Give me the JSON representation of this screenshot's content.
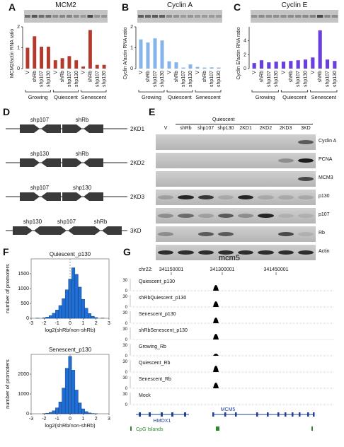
{
  "panels": {
    "A": "A",
    "B": "B",
    "C": "C",
    "D": "D",
    "E": "E",
    "F": "F",
    "G": "G"
  },
  "colors": {
    "mcm2": "#b43a2e",
    "cyclinA": "#86b4ea",
    "cyclinE": "#6a3fe0",
    "hist": "#1f6fd6",
    "peak": "#000000",
    "gene": "#1f3f9a",
    "cpg": "#2a8a2a"
  },
  "chart_data": [
    {
      "type": "bar",
      "title": "MCM2",
      "ylabel": "MCM2/actin RNA ratio",
      "ylim": [
        0,
        2
      ],
      "categories": [
        "V",
        "shRb",
        "shp107",
        "shp130",
        "V",
        "shRb",
        "shp107",
        "shp130",
        "V",
        "shRb",
        "shp107",
        "shp130"
      ],
      "values": [
        1.0,
        1.55,
        1.05,
        1.05,
        0.4,
        0.5,
        0.6,
        0.4,
        0.1,
        1.85,
        0.18,
        0.18
      ],
      "groups": [
        "Growing",
        "Quiescent",
        "Senescent"
      ],
      "yticks": [
        "0",
        "1",
        "2"
      ]
    },
    {
      "type": "bar",
      "title": "Cyclin A",
      "ylabel": "Cyclin A/actin RNA ratio",
      "ylim": [
        0,
        2
      ],
      "categories": [
        "V",
        "shRb",
        "shp107",
        "shp130",
        "V",
        "shRb",
        "shp107",
        "shp130",
        "V",
        "shRb",
        "shp107",
        "shp130"
      ],
      "values": [
        1.4,
        1.25,
        1.45,
        1.35,
        0.35,
        0.3,
        0.05,
        0.2,
        0.08,
        0.05,
        0.06,
        0.05
      ],
      "groups": [
        "Growing",
        "Quiescent",
        "Senescent"
      ],
      "yticks": [
        "0",
        "1",
        "2"
      ]
    },
    {
      "type": "bar",
      "title": "Cyclin E",
      "ylabel": "Cyclin E/actin RNA ratio",
      "ylim": [
        0,
        6
      ],
      "categories": [
        "V",
        "shRb",
        "shp107",
        "shp130",
        "V",
        "shRb",
        "shp107",
        "shp130",
        "V",
        "shRb",
        "shp107",
        "shp130"
      ],
      "values": [
        0.8,
        1.2,
        0.9,
        1.0,
        1.0,
        1.1,
        1.2,
        1.3,
        1.6,
        5.5,
        1.3,
        1.1
      ],
      "groups": [
        "Growing",
        "Quiescent",
        "Senescent"
      ],
      "yticks": [
        "0",
        "2",
        "4"
      ]
    },
    {
      "type": "bar",
      "title": "Quiescent_p130",
      "xlabel": "log2(shRb/non-shRb)",
      "ylabel": "number of promoters",
      "xlim": [
        -3,
        3
      ],
      "ylim": [
        0,
        2000
      ],
      "xticks": [
        "-3",
        "-2",
        "-1",
        "0",
        "1",
        "2",
        "3"
      ],
      "yticks": [
        "0",
        "500",
        "1000",
        "1500"
      ],
      "bins": [
        -2.5,
        -2.0,
        -1.75,
        -1.5,
        -1.25,
        -1.0,
        -0.75,
        -0.5,
        -0.25,
        0.0,
        0.25,
        0.5,
        0.75,
        1.0,
        1.25,
        1.5,
        1.75,
        2.0,
        2.5
      ],
      "values": [
        5,
        15,
        40,
        90,
        170,
        280,
        430,
        660,
        960,
        1320,
        1700,
        1480,
        1050,
        640,
        340,
        160,
        70,
        25,
        8
      ]
    },
    {
      "type": "bar",
      "title": "Senescent_p130",
      "xlabel": "log2(shRb/non-shRb)",
      "ylabel": "number of promoters",
      "xlim": [
        -3,
        3
      ],
      "ylim": [
        0,
        3000
      ],
      "xticks": [
        "-3",
        "-2",
        "-1",
        "0",
        "1",
        "2",
        "3"
      ],
      "yticks": [
        "0",
        "1000",
        "2000"
      ],
      "bins": [
        -2.0,
        -1.75,
        -1.5,
        -1.25,
        -1.0,
        -0.75,
        -0.5,
        -0.25,
        0.0,
        0.25,
        0.5,
        0.75,
        1.0,
        1.25,
        1.5,
        1.75,
        2.0
      ],
      "values": [
        10,
        30,
        70,
        150,
        300,
        600,
        1300,
        2300,
        2900,
        2200,
        1200,
        550,
        250,
        110,
        45,
        15,
        5
      ]
    }
  ],
  "panelD": {
    "constructs": [
      {
        "labels": [
          "shp107",
          "shRb"
        ],
        "name": "2KD1"
      },
      {
        "labels": [
          "shp130",
          "shRb"
        ],
        "name": "2KD2"
      },
      {
        "labels": [
          "shp107",
          "shp130"
        ],
        "name": "2KD3"
      },
      {
        "labels": [
          "shp130",
          "shp107",
          "shRb"
        ],
        "name": "3KD"
      }
    ]
  },
  "panelE": {
    "group_label": "Quiescent",
    "lanes": [
      "V",
      "shRb",
      "shp107",
      "shp130",
      "2KD1",
      "2KD2",
      "2KD3",
      "3KD"
    ],
    "rows": [
      "Cyclin A",
      "PCNA",
      "MCM3",
      "p130",
      "p107",
      "Rb",
      "Actin"
    ]
  },
  "panelG": {
    "title": "mcm5",
    "chr": "chr22:",
    "coords": [
      "341150001",
      "341300001",
      "341450001"
    ],
    "tracks": [
      "Quiescent_p130",
      "shRbQuiescent_p130",
      "Senescent_p130",
      "shRbSenescent_p130",
      "Growing_Rb",
      "Quiescent_Rb",
      "Senescent_Rb",
      "Mock"
    ],
    "axis_top": "30",
    "axis_bottom": "0",
    "genes": [
      "HMOX1",
      "MCM5"
    ],
    "cpg": "CpG Islands"
  }
}
